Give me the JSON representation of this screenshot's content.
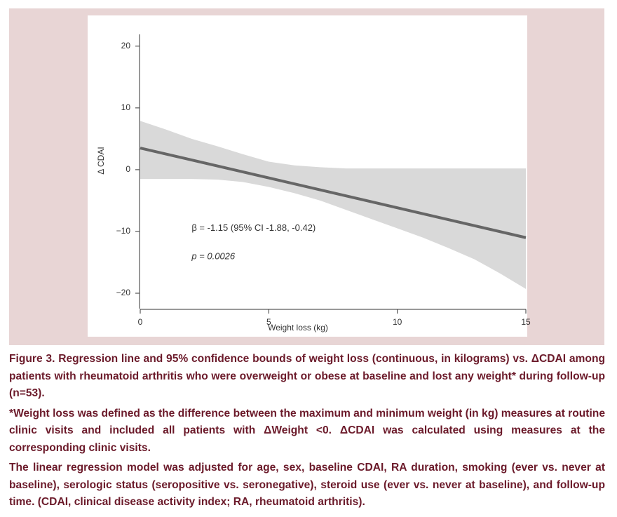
{
  "chart_data": {
    "type": "line",
    "xlabel": "Weight loss (kg)",
    "ylabel": "Δ CDAI",
    "xlim": [
      0,
      15
    ],
    "ylim": [
      -22.5,
      21
    ],
    "xticks": [
      0,
      5,
      10,
      15
    ],
    "yticks": [
      20,
      10,
      0,
      {
        "value": -10,
        "label": "−10"
      },
      {
        "value": -20,
        "label": "−20"
      }
    ],
    "band": {
      "color": "#d9d9d9",
      "x": [
        0,
        1,
        2,
        3,
        4,
        5,
        6,
        7,
        8,
        9,
        10,
        11,
        12,
        13,
        14,
        15
      ],
      "upper": [
        7.9,
        6.5,
        5.0,
        3.8,
        2.5,
        1.3,
        0.7,
        0.4,
        0.2,
        0.2,
        0.2,
        0.2,
        0.2,
        0.2,
        0.2,
        0.2
      ],
      "lower": [
        -1.5,
        -1.5,
        -1.5,
        -1.6,
        -2.0,
        -2.8,
        -3.8,
        -5.0,
        -6.5,
        -8.0,
        -9.5,
        -11.0,
        -12.7,
        -14.5,
        -16.8,
        -19.3
      ]
    },
    "line": {
      "color": "#666666",
      "x": [
        0,
        15
      ],
      "values": [
        3.5,
        -11
      ]
    },
    "annotations": [
      "β = -1.15 (95% CI -1.88, -0.42)",
      "p = 0.0026"
    ]
  },
  "caption": [
    "Figure 3. Regression line and 95% confidence bounds of weight loss (continuous, in kilograms) vs. ΔCDAI among patients with rheumatoid arthritis who were overweight or obese at baseline and lost any weight* during follow-up (n=53).",
    "*Weight loss was defined as the difference between the maximum and minimum weight (in kg) measures at routine clinic visits and included all patients with ΔWeight <0. ΔCDAI was calculated using measures at the corresponding clinic visits.",
    "The linear regression model was adjusted for age, sex, baseline CDAI, RA duration, smoking (ever vs. never at baseline), serologic status (seropositive vs. seronegative), steroid use (ever vs. never at baseline), and follow-up time. (CDAI, clinical disease activity index; RA, rheumatoid arthritis)."
  ]
}
